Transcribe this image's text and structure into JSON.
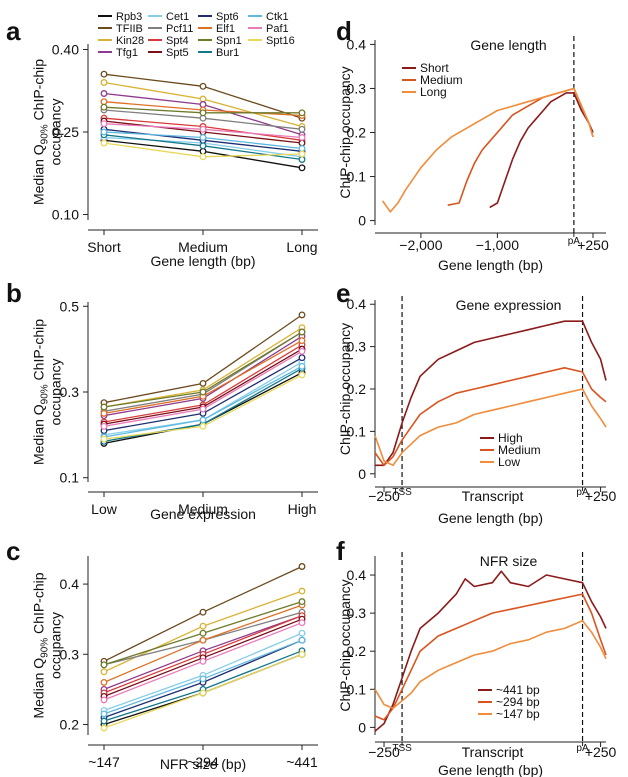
{
  "chart_data": [
    {
      "panel": "a",
      "type": "line",
      "categories": [
        "Short",
        "Medium",
        "Long"
      ],
      "xlabel": "Gene length (bp)",
      "ylabel_lines": [
        "Median Q90% ChIP-chip",
        "occupancy"
      ],
      "ylim": [
        0.09,
        0.41
      ],
      "yticks": [
        0.1,
        0.25,
        0.4
      ],
      "ytick_labels": [
        "0.10",
        "0.25",
        "0.40"
      ],
      "legend": [
        {
          "name": "Rpb3",
          "color": "#111111"
        },
        {
          "name": "TFIIB",
          "color": "#6b4a1e"
        },
        {
          "name": "Kin28",
          "color": "#d9b233"
        },
        {
          "name": "Tfg1",
          "color": "#8e3b8e"
        },
        {
          "name": "Cet1",
          "color": "#86cde8"
        },
        {
          "name": "Pcf11",
          "color": "#7f7f7f"
        },
        {
          "name": "Spt4",
          "color": "#d83a3a"
        },
        {
          "name": "Spt5",
          "color": "#7a1018"
        },
        {
          "name": "Spt6",
          "color": "#1e2e70"
        },
        {
          "name": "Elf1",
          "color": "#de7026"
        },
        {
          "name": "Spn1",
          "color": "#6e7a2a"
        },
        {
          "name": "Bur1",
          "color": "#13788a"
        },
        {
          "name": "Ctk1",
          "color": "#5eb8e0"
        },
        {
          "name": "Paf1",
          "color": "#e87ab8"
        },
        {
          "name": "Spt16",
          "color": "#e8d85a"
        }
      ],
      "series": [
        {
          "name": "Rpb3",
          "color": "#111111",
          "values": [
            0.235,
            0.215,
            0.185
          ]
        },
        {
          "name": "TFIIB",
          "color": "#6b4a1e",
          "values": [
            0.355,
            0.333,
            0.275
          ]
        },
        {
          "name": "Kin28",
          "color": "#d9b233",
          "values": [
            0.34,
            0.31,
            0.26
          ]
        },
        {
          "name": "Tfg1",
          "color": "#8e3b8e",
          "values": [
            0.32,
            0.3,
            0.245
          ]
        },
        {
          "name": "Cet1",
          "color": "#86cde8",
          "values": [
            0.24,
            0.23,
            0.205
          ]
        },
        {
          "name": "Pcf11",
          "color": "#7f7f7f",
          "values": [
            0.29,
            0.275,
            0.255
          ]
        },
        {
          "name": "Spt4",
          "color": "#d83a3a",
          "values": [
            0.275,
            0.26,
            0.235
          ]
        },
        {
          "name": "Spt5",
          "color": "#7a1018",
          "values": [
            0.27,
            0.25,
            0.23
          ]
        },
        {
          "name": "Spt6",
          "color": "#1e2e70",
          "values": [
            0.255,
            0.235,
            0.215
          ]
        },
        {
          "name": "Elf1",
          "color": "#de7026",
          "values": [
            0.305,
            0.29,
            0.28
          ]
        },
        {
          "name": "Spn1",
          "color": "#6e7a2a",
          "values": [
            0.295,
            0.285,
            0.285
          ]
        },
        {
          "name": "Bur1",
          "color": "#13788a",
          "values": [
            0.245,
            0.225,
            0.2
          ]
        },
        {
          "name": "Ctk1",
          "color": "#5eb8e0",
          "values": [
            0.25,
            0.24,
            0.22
          ]
        },
        {
          "name": "Paf1",
          "color": "#e87ab8",
          "values": [
            0.265,
            0.255,
            0.24
          ]
        },
        {
          "name": "Spt16",
          "color": "#e8d85a",
          "values": [
            0.23,
            0.205,
            0.21
          ]
        }
      ]
    },
    {
      "panel": "b",
      "type": "line",
      "categories": [
        "Low",
        "Medium",
        "High"
      ],
      "xlabel": "Gene expression",
      "ylabel_lines": [
        "Median Q90% ChIP-chip",
        "occupancy"
      ],
      "ylim": [
        0.09,
        0.51
      ],
      "yticks": [
        0.1,
        0.3,
        0.5
      ],
      "ytick_labels": [
        "0.1",
        "0.3",
        "0.5"
      ],
      "series": [
        {
          "name": "Rpb3",
          "color": "#111111",
          "values": [
            0.18,
            0.225,
            0.345
          ]
        },
        {
          "name": "TFIIB",
          "color": "#6b4a1e",
          "values": [
            0.275,
            0.32,
            0.48
          ]
        },
        {
          "name": "Kin28",
          "color": "#d9b233",
          "values": [
            0.265,
            0.305,
            0.45
          ]
        },
        {
          "name": "Tfg1",
          "color": "#8e3b8e",
          "values": [
            0.245,
            0.285,
            0.43
          ]
        },
        {
          "name": "Cet1",
          "color": "#86cde8",
          "values": [
            0.2,
            0.235,
            0.37
          ]
        },
        {
          "name": "Pcf11",
          "color": "#7f7f7f",
          "values": [
            0.255,
            0.295,
            0.44
          ]
        },
        {
          "name": "Spt4",
          "color": "#d83a3a",
          "values": [
            0.23,
            0.27,
            0.41
          ]
        },
        {
          "name": "Spt5",
          "color": "#7a1018",
          "values": [
            0.225,
            0.265,
            0.4
          ]
        },
        {
          "name": "Spt6",
          "color": "#1e2e70",
          "values": [
            0.21,
            0.25,
            0.38
          ]
        },
        {
          "name": "Elf1",
          "color": "#de7026",
          "values": [
            0.25,
            0.29,
            0.42
          ]
        },
        {
          "name": "Spn1",
          "color": "#6e7a2a",
          "values": [
            0.265,
            0.3,
            0.44
          ]
        },
        {
          "name": "Bur1",
          "color": "#13788a",
          "values": [
            0.185,
            0.225,
            0.355
          ]
        },
        {
          "name": "Ctk1",
          "color": "#5eb8e0",
          "values": [
            0.195,
            0.235,
            0.36
          ]
        },
        {
          "name": "Paf1",
          "color": "#e87ab8",
          "values": [
            0.22,
            0.26,
            0.395
          ]
        },
        {
          "name": "Spt16",
          "color": "#e8d85a",
          "values": [
            0.19,
            0.22,
            0.34
          ]
        }
      ]
    },
    {
      "panel": "c",
      "type": "line",
      "categories": [
        "~147",
        "~294",
        "~441"
      ],
      "xlabel": "NFR size (bp)",
      "ylabel_lines": [
        "Median Q90% ChIP-chip",
        "occupancy"
      ],
      "ylim": [
        0.185,
        0.44
      ],
      "yticks": [
        0.2,
        0.3,
        0.4
      ],
      "ytick_labels": [
        "0.2",
        "0.3",
        "0.4"
      ],
      "series": [
        {
          "name": "Rpb3",
          "color": "#111111",
          "values": [
            0.2,
            0.245,
            0.3
          ]
        },
        {
          "name": "TFIIB",
          "color": "#6b4a1e",
          "values": [
            0.29,
            0.36,
            0.425
          ]
        },
        {
          "name": "Kin28",
          "color": "#d9b233",
          "values": [
            0.275,
            0.34,
            0.39
          ]
        },
        {
          "name": "Tfg1",
          "color": "#8e3b8e",
          "values": [
            0.25,
            0.305,
            0.355
          ]
        },
        {
          "name": "Cet1",
          "color": "#86cde8",
          "values": [
            0.22,
            0.27,
            0.33
          ]
        },
        {
          "name": "Pcf11",
          "color": "#7f7f7f",
          "values": [
            0.285,
            0.32,
            0.36
          ]
        },
        {
          "name": "Spt4",
          "color": "#d83a3a",
          "values": [
            0.245,
            0.3,
            0.355
          ]
        },
        {
          "name": "Spt5",
          "color": "#7a1018",
          "values": [
            0.24,
            0.295,
            0.35
          ]
        },
        {
          "name": "Spt6",
          "color": "#1e2e70",
          "values": [
            0.21,
            0.26,
            0.32
          ]
        },
        {
          "name": "Elf1",
          "color": "#de7026",
          "values": [
            0.26,
            0.32,
            0.37
          ]
        },
        {
          "name": "Spn1",
          "color": "#6e7a2a",
          "values": [
            0.285,
            0.33,
            0.375
          ]
        },
        {
          "name": "Bur1",
          "color": "#13788a",
          "values": [
            0.205,
            0.25,
            0.305
          ]
        },
        {
          "name": "Ctk1",
          "color": "#5eb8e0",
          "values": [
            0.215,
            0.265,
            0.32
          ]
        },
        {
          "name": "Paf1",
          "color": "#e87ab8",
          "values": [
            0.235,
            0.29,
            0.345
          ]
        },
        {
          "name": "Spt16",
          "color": "#e8d85a",
          "values": [
            0.195,
            0.245,
            0.3
          ]
        }
      ]
    },
    {
      "panel": "d",
      "type": "line",
      "title": "Gene length",
      "xlabel": "Gene length (bp)",
      "ylabel": "ChIP-chip occupancy",
      "xlim": [
        -2600,
        420
      ],
      "ylim": [
        -0.01,
        0.41
      ],
      "xticks": [
        -2000,
        -1000,
        250
      ],
      "xtick_labels": [
        "−2,000",
        "−1,000",
        "+250"
      ],
      "yticks": [
        0,
        0.1,
        0.2,
        0.3,
        0.4
      ],
      "ytick_labels": [
        "0",
        "0.1",
        "0.2",
        "0.3",
        "0.4"
      ],
      "vlines": [
        {
          "x": 0,
          "label": "pA"
        }
      ],
      "series": [
        {
          "name": "Short",
          "color": "#8b1a1a",
          "x": [
            -1100,
            -1000,
            -900,
            -800,
            -700,
            -600,
            -500,
            -400,
            -300,
            -200,
            -100,
            0,
            100,
            200,
            250
          ],
          "y": [
            0.03,
            0.04,
            0.09,
            0.14,
            0.18,
            0.21,
            0.23,
            0.25,
            0.27,
            0.28,
            0.29,
            0.29,
            0.25,
            0.22,
            0.2
          ]
        },
        {
          "name": "Medium",
          "color": "#d9541e",
          "x": [
            -1650,
            -1500,
            -1400,
            -1300,
            -1200,
            -1100,
            -1000,
            -900,
            -800,
            -600,
            -400,
            -200,
            0,
            100,
            200,
            250
          ],
          "y": [
            0.035,
            0.04,
            0.09,
            0.13,
            0.16,
            0.18,
            0.2,
            0.22,
            0.24,
            0.26,
            0.28,
            0.29,
            0.3,
            0.26,
            0.22,
            0.19
          ]
        },
        {
          "name": "Long",
          "color": "#f08c3a",
          "x": [
            -2500,
            -2400,
            -2300,
            -2200,
            -2000,
            -1800,
            -1600,
            -1400,
            -1200,
            -1000,
            -800,
            -600,
            -400,
            -200,
            0,
            100,
            200,
            250
          ],
          "y": [
            0.045,
            0.02,
            0.04,
            0.07,
            0.12,
            0.16,
            0.19,
            0.21,
            0.23,
            0.25,
            0.26,
            0.27,
            0.28,
            0.29,
            0.3,
            0.26,
            0.22,
            0.19
          ]
        }
      ]
    },
    {
      "panel": "e",
      "type": "line",
      "title": "Gene expression",
      "xlabel": "Gene length (bp)",
      "xlabel_inner": "Transcript",
      "ylabel": "ChIP-chip occupancy",
      "xlim": [
        -0.15,
        1.13
      ],
      "ylim": [
        -0.01,
        0.41
      ],
      "xticks": [
        -0.1,
        1.1
      ],
      "xtick_labels": [
        "−250",
        "+250"
      ],
      "yticks": [
        0,
        0.1,
        0.2,
        0.3,
        0.4
      ],
      "ytick_labels": [
        "0",
        "0.1",
        "0.2",
        "0.3",
        "0.4"
      ],
      "vlines": [
        {
          "x": 0,
          "label": "TSS"
        },
        {
          "x": 1,
          "label": "pA"
        }
      ],
      "series": [
        {
          "name": "High",
          "color": "#8b1a1a",
          "x": [
            -0.15,
            -0.1,
            -0.05,
            0,
            0.05,
            0.1,
            0.2,
            0.3,
            0.4,
            0.5,
            0.6,
            0.7,
            0.8,
            0.9,
            1.0,
            1.05,
            1.1,
            1.13
          ],
          "y": [
            0.02,
            0.02,
            0.05,
            0.12,
            0.18,
            0.23,
            0.27,
            0.29,
            0.31,
            0.32,
            0.33,
            0.34,
            0.35,
            0.36,
            0.36,
            0.31,
            0.27,
            0.22
          ]
        },
        {
          "name": "Medium",
          "color": "#d9541e",
          "x": [
            -0.15,
            -0.1,
            -0.05,
            0,
            0.05,
            0.1,
            0.2,
            0.3,
            0.4,
            0.5,
            0.6,
            0.7,
            0.8,
            0.9,
            1.0,
            1.05,
            1.1,
            1.13
          ],
          "y": [
            0.05,
            0.02,
            0.04,
            0.08,
            0.11,
            0.14,
            0.17,
            0.19,
            0.2,
            0.21,
            0.22,
            0.23,
            0.24,
            0.25,
            0.24,
            0.2,
            0.18,
            0.17
          ]
        },
        {
          "name": "Low",
          "color": "#f08c3a",
          "x": [
            -0.15,
            -0.1,
            -0.05,
            0,
            0.05,
            0.1,
            0.2,
            0.3,
            0.4,
            0.5,
            0.6,
            0.7,
            0.8,
            0.9,
            1.0,
            1.05,
            1.1,
            1.13
          ],
          "y": [
            0.09,
            0.03,
            0.02,
            0.05,
            0.07,
            0.09,
            0.11,
            0.12,
            0.14,
            0.15,
            0.16,
            0.17,
            0.18,
            0.19,
            0.2,
            0.16,
            0.13,
            0.11
          ]
        }
      ]
    },
    {
      "panel": "f",
      "type": "line",
      "title": "NFR size",
      "xlabel": "Gene length (bp)",
      "xlabel_inner": "Transcript",
      "ylabel": "ChIP-chip occupancy",
      "xlim": [
        -0.15,
        1.13
      ],
      "ylim": [
        -0.02,
        0.45
      ],
      "xticks": [
        -0.1,
        1.1
      ],
      "xtick_labels": [
        "−250",
        "+250"
      ],
      "yticks": [
        0,
        0.1,
        0.2,
        0.3,
        0.4
      ],
      "ytick_labels": [
        "0",
        "0.1",
        "0.2",
        "0.3",
        "0.4"
      ],
      "vlines": [
        {
          "x": 0,
          "label": "TSS"
        },
        {
          "x": 1,
          "label": "pA"
        }
      ],
      "series": [
        {
          "name": "~441 bp",
          "color": "#8b1a1a",
          "x": [
            -0.15,
            -0.1,
            -0.05,
            0,
            0.05,
            0.1,
            0.2,
            0.3,
            0.35,
            0.4,
            0.5,
            0.55,
            0.6,
            0.7,
            0.8,
            0.9,
            1.0,
            1.05,
            1.1,
            1.13
          ],
          "y": [
            -0.01,
            0.01,
            0.06,
            0.13,
            0.2,
            0.26,
            0.3,
            0.35,
            0.39,
            0.37,
            0.38,
            0.41,
            0.38,
            0.37,
            0.4,
            0.39,
            0.38,
            0.33,
            0.29,
            0.26
          ]
        },
        {
          "name": "~294 bp",
          "color": "#d9541e",
          "x": [
            -0.15,
            -0.1,
            -0.05,
            0,
            0.05,
            0.1,
            0.2,
            0.3,
            0.4,
            0.5,
            0.6,
            0.7,
            0.8,
            0.9,
            1.0,
            1.05,
            1.1,
            1.13
          ],
          "y": [
            0.03,
            0.02,
            0.05,
            0.1,
            0.15,
            0.2,
            0.24,
            0.26,
            0.28,
            0.3,
            0.31,
            0.32,
            0.33,
            0.34,
            0.35,
            0.3,
            0.23,
            0.19
          ]
        },
        {
          "name": "~147 bp",
          "color": "#f08c3a",
          "x": [
            -0.15,
            -0.1,
            -0.05,
            0,
            0.05,
            0.1,
            0.2,
            0.3,
            0.4,
            0.5,
            0.6,
            0.7,
            0.8,
            0.9,
            1.0,
            1.05,
            1.1,
            1.13
          ],
          "y": [
            0.1,
            0.06,
            0.05,
            0.07,
            0.09,
            0.12,
            0.15,
            0.17,
            0.19,
            0.2,
            0.22,
            0.23,
            0.25,
            0.26,
            0.28,
            0.25,
            0.21,
            0.18
          ]
        }
      ]
    }
  ]
}
